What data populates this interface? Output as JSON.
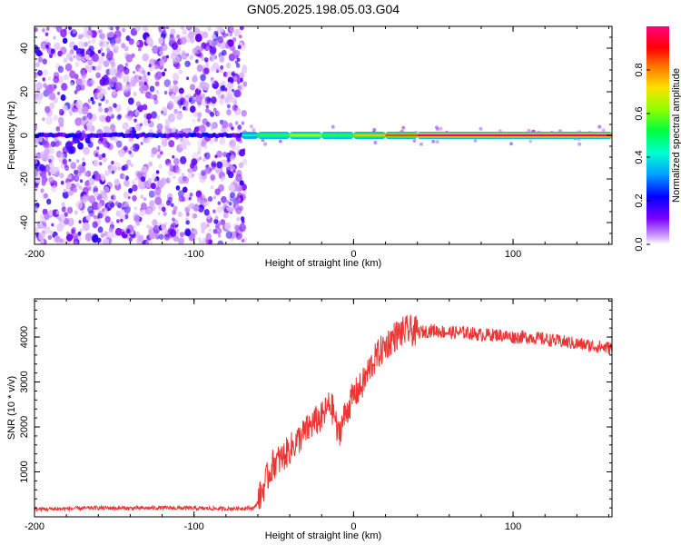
{
  "page": {
    "title": "GN05.2025.198.05.03.G04"
  },
  "chart_data": [
    {
      "type": "heatmap",
      "name": "spectrogram",
      "xlabel": "Height of straight line (km)",
      "ylabel": "Frequency (Hz)",
      "xlim": [
        -200,
        162
      ],
      "ylim": [
        -50,
        50
      ],
      "xticks": [
        -200,
        -100,
        0,
        100
      ],
      "yticks": [
        -40,
        -20,
        0,
        20,
        40
      ],
      "colorbar": {
        "label": "Normalized spectral amplitude",
        "range": [
          0,
          1
        ],
        "ticks": [
          0.0,
          0.2,
          0.4,
          0.6,
          0.8
        ],
        "colormap": [
          "#ffffff",
          "#d9c2f5",
          "#7a00ff",
          "#0000ff",
          "#00b0ff",
          "#00ffd0",
          "#00ff40",
          "#b0ff00",
          "#ffd000",
          "#ff6000",
          "#ff0000",
          "#ff0080"
        ]
      },
      "noise_region_x": [
        -200,
        -68
      ],
      "signal_band_center_hz": 0,
      "signal_segments": [
        {
          "x": [
            -70,
            -60
          ],
          "amplitude": 0.45
        },
        {
          "x": [
            -60,
            -40
          ],
          "amplitude": 0.55
        },
        {
          "x": [
            -40,
            -20
          ],
          "amplitude": 0.65
        },
        {
          "x": [
            -20,
            0
          ],
          "amplitude": 0.55
        },
        {
          "x": [
            0,
            20
          ],
          "amplitude": 0.75
        },
        {
          "x": [
            20,
            40
          ],
          "amplitude": 0.85
        },
        {
          "x": [
            40,
            162
          ],
          "amplitude": 0.98
        }
      ],
      "grid": false
    },
    {
      "type": "line",
      "name": "snr",
      "xlabel": "Height of straight line (km)",
      "ylabel": "SNR (10 * v/v)",
      "xlim": [
        -200,
        162
      ],
      "ylim": [
        0,
        4850
      ],
      "xticks": [
        -200,
        -100,
        0,
        100
      ],
      "yticks": [
        1000,
        2000,
        3000,
        4000
      ],
      "line_color": "#ee3333",
      "grid": false,
      "series": [
        {
          "x": [
            -200,
            -180,
            -160,
            -140,
            -120,
            -100,
            -80,
            -70,
            -62,
            -58,
            -55,
            -50,
            -45,
            -40,
            -35,
            -30,
            -25,
            -20,
            -15,
            -12,
            -10,
            -8,
            -5,
            0,
            5,
            10,
            15,
            20,
            25,
            30,
            35,
            40,
            50,
            60,
            70,
            80,
            90,
            100,
            110,
            120,
            130,
            140,
            150,
            162
          ],
          "values": [
            170,
            180,
            200,
            190,
            200,
            190,
            180,
            190,
            200,
            500,
            800,
            1200,
            1300,
            1500,
            1700,
            1900,
            2100,
            2200,
            2500,
            2300,
            1800,
            2000,
            2300,
            2700,
            2900,
            3300,
            3600,
            3800,
            4000,
            4100,
            4150,
            4100,
            4150,
            4100,
            4100,
            4050,
            4050,
            4000,
            4000,
            3950,
            3900,
            3850,
            3800,
            3750
          ]
        }
      ]
    }
  ]
}
